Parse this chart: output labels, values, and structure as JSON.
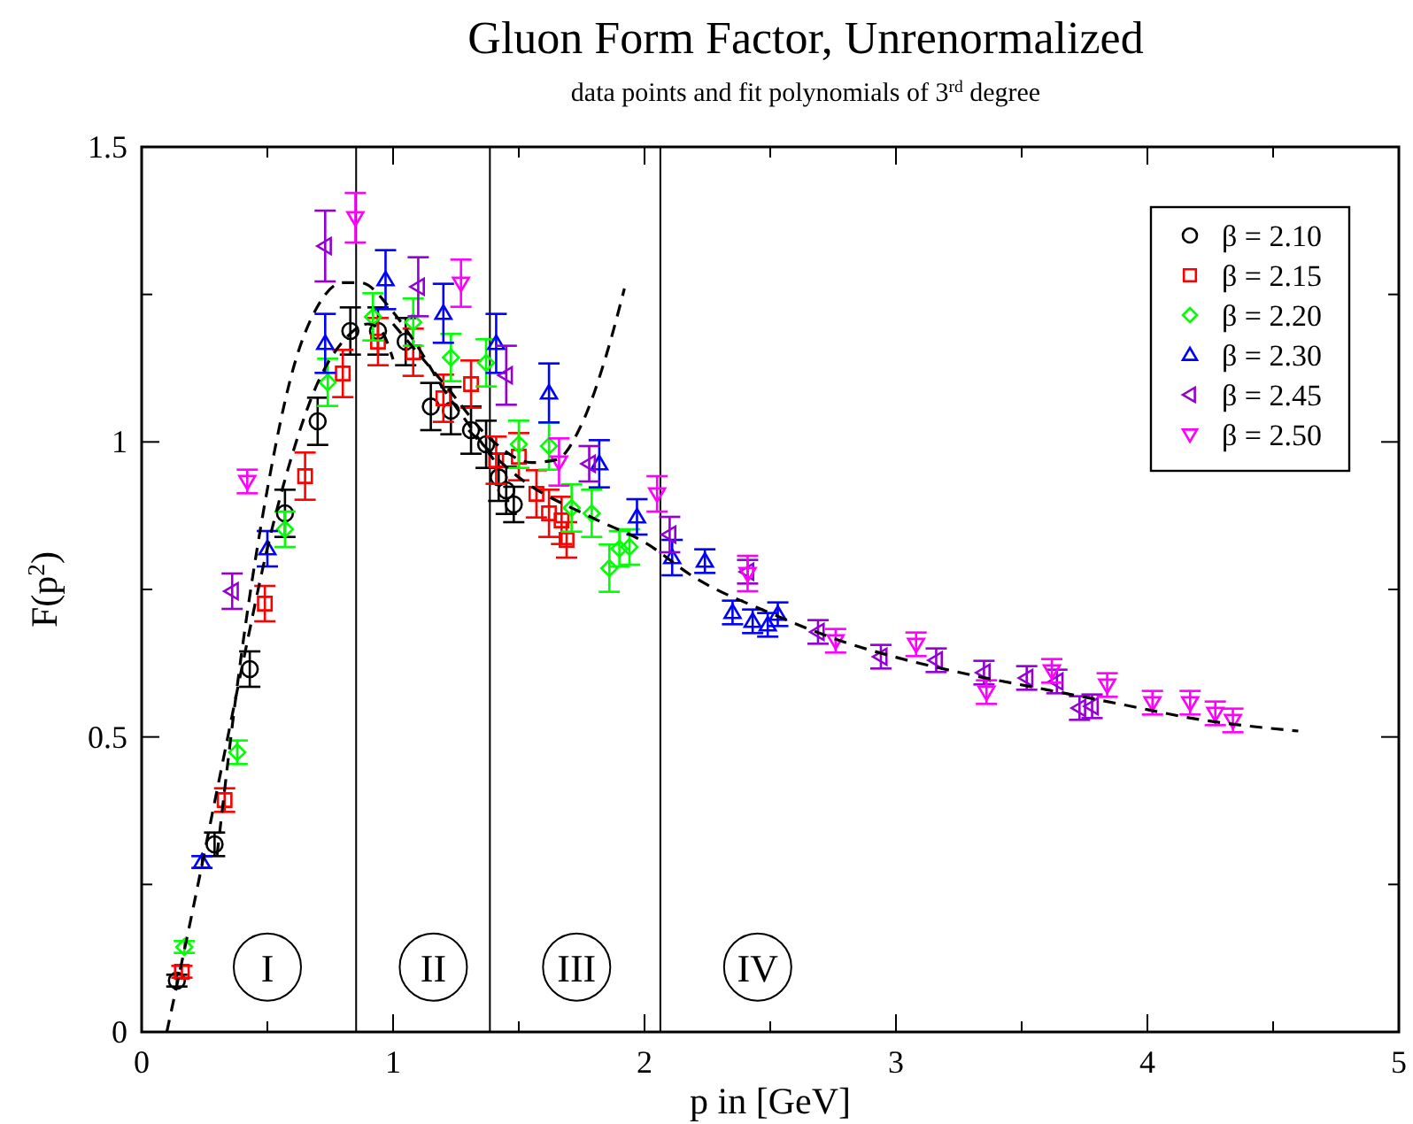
{
  "chart_data": {
    "type": "scatter",
    "title": "Gluon Form Factor, Unrenormalized",
    "subtitle": "data points and fit polynomials of 3$^{rd}$ degree",
    "xlabel": "p in [GeV]",
    "ylabel": "F(p$^{2}$)",
    "xlim": [
      0,
      5
    ],
    "ylim": [
      0,
      1.5
    ],
    "xticks": [
      0,
      {
        "value": 0.5,
        "label": null
      },
      1,
      {
        "value": 1.5,
        "label": null
      },
      2,
      {
        "value": 2.5,
        "label": null
      },
      3,
      {
        "value": 3.5,
        "label": null
      },
      4,
      {
        "value": 4.5,
        "label": null
      },
      5
    ],
    "yticks": [
      0,
      {
        "value": 0.25,
        "label": null
      },
      0.5,
      {
        "value": 0.75,
        "label": null
      },
      1,
      {
        "value": 1.25,
        "label": null
      },
      1.5
    ],
    "grid": false,
    "legend": "top right",
    "ref_lines": [
      {
        "axis": "x",
        "value": 0.853,
        "color": "#000000"
      },
      {
        "axis": "x",
        "value": 1.385,
        "color": "#000000"
      },
      {
        "axis": "x",
        "value": 2.063,
        "color": "#000000"
      }
    ],
    "annotations": [
      {
        "text": "I",
        "x": 0.5,
        "y": 0.11
      },
      {
        "text": "II",
        "x": 1.16,
        "y": 0.11
      },
      {
        "text": "III",
        "x": 1.73,
        "y": 0.11
      },
      {
        "text": "IV",
        "x": 2.45,
        "y": 0.11
      }
    ],
    "series": [
      {
        "name": "β = 2.10",
        "marker": "circle",
        "color": "#000000",
        "x": [
          0.14,
          0.29,
          0.43,
          0.57,
          0.7,
          0.83,
          0.94,
          1.05,
          1.15,
          1.23,
          1.31,
          1.37,
          1.42,
          1.45,
          1.48
        ],
        "values": [
          0.087,
          0.318,
          0.615,
          0.879,
          1.035,
          1.188,
          1.188,
          1.17,
          1.06,
          1.053,
          1.02,
          0.996,
          0.94,
          0.918,
          0.894
        ],
        "errors": [
          0.01,
          0.02,
          0.03,
          0.04,
          0.04,
          0.04,
          0.04,
          0.04,
          0.04,
          0.04,
          0.04,
          0.04,
          0.04,
          0.04,
          0.03
        ]
      },
      {
        "name": "β = 2.15",
        "marker": "square",
        "color": "#ff0000",
        "x": [
          0.16,
          0.33,
          0.49,
          0.65,
          0.8,
          0.94,
          1.08,
          1.2,
          1.31,
          1.41,
          1.5,
          1.57,
          1.62,
          1.67,
          1.69
        ],
        "values": [
          0.102,
          0.393,
          0.726,
          0.942,
          1.116,
          1.17,
          1.152,
          1.074,
          1.098,
          0.969,
          0.975,
          0.912,
          0.879,
          0.867,
          0.834
        ],
        "errors": [
          0.01,
          0.02,
          0.03,
          0.04,
          0.04,
          0.04,
          0.04,
          0.04,
          0.04,
          0.04,
          0.04,
          0.04,
          0.04,
          0.04,
          0.03
        ]
      },
      {
        "name": "β = 2.20",
        "marker": "diamond",
        "color": "#00ff00",
        "x": [
          0.17,
          0.38,
          0.57,
          0.74,
          0.92,
          1.08,
          1.23,
          1.37,
          1.5,
          1.62,
          1.71,
          1.79,
          1.86,
          1.9,
          1.94
        ],
        "values": [
          0.144,
          0.474,
          0.852,
          1.101,
          1.212,
          1.203,
          1.143,
          1.134,
          0.996,
          0.993,
          0.888,
          0.879,
          0.786,
          0.819,
          0.822
        ],
        "errors": [
          0.01,
          0.02,
          0.03,
          0.04,
          0.04,
          0.04,
          0.04,
          0.04,
          0.04,
          0.04,
          0.04,
          0.04,
          0.04,
          0.03,
          0.03
        ]
      },
      {
        "name": "β = 2.30",
        "marker": "triangle",
        "color": "#0000ff",
        "x": [
          0.24,
          0.5,
          0.73,
          0.97,
          1.2,
          1.41,
          1.62,
          1.82,
          1.97,
          2.11,
          2.24,
          2.35,
          2.43,
          2.49,
          2.53
        ],
        "values": [
          0.288,
          0.819,
          1.167,
          1.275,
          1.218,
          1.167,
          1.083,
          0.963,
          0.873,
          0.804,
          0.798,
          0.711,
          0.696,
          0.69,
          0.708
        ],
        "errors": [
          0.01,
          0.03,
          0.05,
          0.05,
          0.05,
          0.05,
          0.05,
          0.04,
          0.03,
          0.03,
          0.02,
          0.02,
          0.02,
          0.02,
          0.02
        ]
      },
      {
        "name": "β = 2.45",
        "marker": "triangle-left",
        "color": "#9400d3",
        "x": [
          0.36,
          0.73,
          1.1,
          1.45,
          1.78,
          2.1,
          2.41,
          2.69,
          2.94,
          3.16,
          3.35,
          3.52,
          3.64,
          3.73,
          3.78
        ],
        "values": [
          0.747,
          1.332,
          1.263,
          1.113,
          0.963,
          0.843,
          0.78,
          0.678,
          0.636,
          0.63,
          0.609,
          0.6,
          0.594,
          0.549,
          0.552
        ],
        "errors": [
          0.03,
          0.06,
          0.05,
          0.05,
          0.03,
          0.03,
          0.02,
          0.02,
          0.02,
          0.02,
          0.02,
          0.02,
          0.02,
          0.02,
          0.02
        ]
      },
      {
        "name": "β = 2.50",
        "marker": "triangle-down",
        "color": "#ff00ff",
        "x": [
          0.42,
          0.85,
          1.27,
          1.66,
          2.05,
          2.41,
          2.76,
          3.08,
          3.36,
          3.62,
          3.84,
          4.02,
          4.17,
          4.27,
          4.34
        ],
        "values": [
          0.933,
          1.38,
          1.269,
          0.966,
          0.912,
          0.777,
          0.663,
          0.657,
          0.576,
          0.612,
          0.588,
          0.558,
          0.558,
          0.54,
          0.528
        ],
        "errors": [
          0.02,
          0.042,
          0.04,
          0.04,
          0.03,
          0.03,
          0.02,
          0.02,
          0.02,
          0.02,
          0.02,
          0.02,
          0.02,
          0.02,
          0.02
        ]
      },
      {
        "type": "line",
        "line_style": "dashed",
        "color": "#000000",
        "x": [
          0.1,
          0.2,
          0.3,
          0.4,
          0.5,
          0.6,
          0.7,
          0.8,
          0.9,
          0.95,
          1.0
        ],
        "values": [
          0.0,
          0.2,
          0.41,
          0.62,
          0.82,
          0.98,
          1.1,
          1.17,
          1.2,
          1.19,
          1.14
        ]
      },
      {
        "type": "line",
        "line_style": "dashed",
        "color": "#000000",
        "x": [
          0.3,
          0.4,
          0.5,
          0.6,
          0.7,
          0.8,
          0.87,
          1.0,
          1.1,
          1.2,
          1.3,
          1.4
        ],
        "values": [
          0.3,
          0.65,
          0.92,
          1.12,
          1.23,
          1.27,
          1.27,
          1.22,
          1.16,
          1.09,
          1.03,
          0.97
        ]
      },
      {
        "type": "line",
        "line_style": "dashed",
        "color": "#000000",
        "x": [
          1.0,
          1.2,
          1.4,
          1.55,
          1.65,
          1.75,
          1.85,
          1.92
        ],
        "values": [
          1.2,
          1.1,
          1.0,
          0.965,
          0.97,
          1.03,
          1.15,
          1.26
        ]
      },
      {
        "type": "line",
        "line_style": "dashed",
        "color": "#000000",
        "x": [
          1.3,
          1.5,
          1.8,
          2.0,
          2.2,
          2.5,
          2.8,
          3.0,
          3.3,
          3.6,
          3.9,
          4.2,
          4.6
        ],
        "values": [
          1.02,
          0.94,
          0.87,
          0.83,
          0.77,
          0.71,
          0.66,
          0.635,
          0.605,
          0.58,
          0.555,
          0.53,
          0.51
        ]
      }
    ]
  }
}
